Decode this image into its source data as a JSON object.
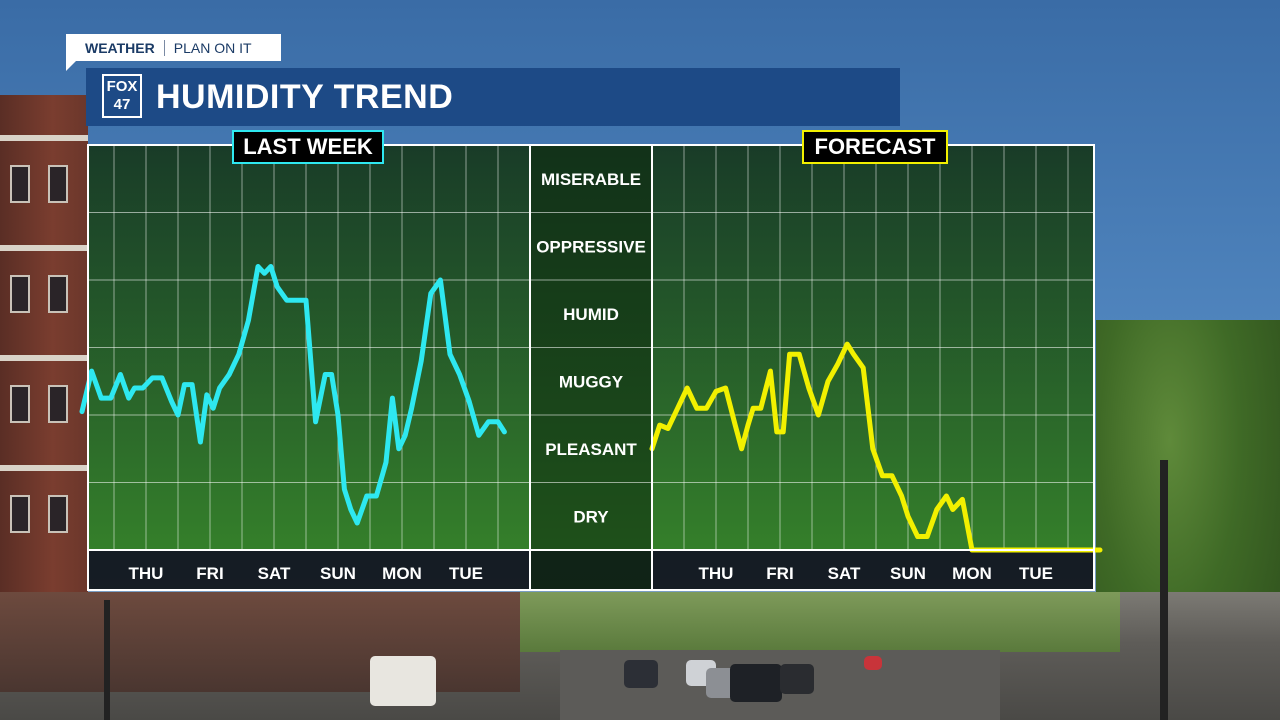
{
  "header": {
    "tag_primary": "WEATHER",
    "tag_secondary": "PLAN ON IT",
    "logo_line1": "FOX",
    "logo_line2": "47",
    "title": "HUMIDITY TREND"
  },
  "colors": {
    "last_week_line": "#2ee8f0",
    "forecast_line": "#f2f000",
    "chart_fill_top": "#123212",
    "chart_fill_bottom": "#2f7d1c",
    "title_bar": "#1d4a86"
  },
  "chart_data": [
    {
      "type": "line",
      "panel": "left",
      "title": "LAST WEEK",
      "categories": [
        "THU",
        "FRI",
        "SAT",
        "SUN",
        "MON",
        "TUE"
      ],
      "y_categories": [
        "DRY",
        "PLEASANT",
        "MUGGY",
        "HUMID",
        "OPPRESSIVE",
        "MISERABLE"
      ],
      "ylim": [
        0.5,
        6.5
      ],
      "xlim": [
        -1,
        6
      ],
      "grid": true,
      "series": [
        {
          "x": [
            -1,
            -0.85,
            -0.7,
            -0.55,
            -0.4,
            -0.27,
            -0.18,
            -0.05,
            0.1,
            0.25,
            0.4,
            0.5,
            0.6,
            0.72,
            0.85,
            0.95,
            1.05,
            1.15,
            1.3,
            1.45,
            1.6,
            1.75,
            1.85,
            1.95,
            2.05,
            2.2,
            2.35,
            2.5,
            2.65,
            2.8,
            2.9,
            3.0,
            3.1,
            3.2,
            3.3,
            3.45,
            3.6,
            3.75,
            3.85,
            3.95,
            4.05,
            4.15,
            4.3,
            4.45,
            4.6,
            4.75,
            4.9,
            5.05,
            5.2,
            5.35,
            5.5,
            5.6
          ],
          "y": [
            2.55,
            3.15,
            2.75,
            2.75,
            3.1,
            2.75,
            2.9,
            2.9,
            3.05,
            3.05,
            2.7,
            2.5,
            2.95,
            2.95,
            2.1,
            2.8,
            2.6,
            2.9,
            3.1,
            3.4,
            3.9,
            4.7,
            4.6,
            4.7,
            4.4,
            4.2,
            4.2,
            4.2,
            2.4,
            3.1,
            3.1,
            2.5,
            1.4,
            1.1,
            0.9,
            1.3,
            1.3,
            1.8,
            2.75,
            2.0,
            2.2,
            2.6,
            3.3,
            4.3,
            4.5,
            3.4,
            3.1,
            2.7,
            2.2,
            2.4,
            2.4,
            2.25
          ]
        }
      ]
    },
    {
      "type": "line",
      "panel": "right",
      "title": "FORECAST",
      "categories": [
        "THU",
        "FRI",
        "SAT",
        "SUN",
        "MON",
        "TUE"
      ],
      "y_categories": [
        "DRY",
        "PLEASANT",
        "MUGGY",
        "HUMID",
        "OPPRESSIVE",
        "MISERABLE"
      ],
      "ylim": [
        0.5,
        6.5
      ],
      "xlim": [
        -1,
        6
      ],
      "grid": true,
      "series": [
        {
          "x": [
            -1,
            -0.88,
            -0.75,
            -0.6,
            -0.45,
            -0.3,
            -0.15,
            0.0,
            0.15,
            0.3,
            0.4,
            0.5,
            0.58,
            0.7,
            0.85,
            0.95,
            1.05,
            1.15,
            1.3,
            1.45,
            1.6,
            1.75,
            1.9,
            2.05,
            2.15,
            2.3,
            2.45,
            2.6,
            2.75,
            2.9,
            3.0,
            3.15,
            3.3,
            3.45,
            3.6,
            3.7,
            3.85,
            4.0,
            4.25,
            4.5,
            4.75,
            5.0,
            5.25,
            5.5,
            5.75,
            6.0
          ],
          "y": [
            2.0,
            2.35,
            2.3,
            2.6,
            2.9,
            2.6,
            2.6,
            2.85,
            2.9,
            2.35,
            2.0,
            2.35,
            2.6,
            2.6,
            3.15,
            2.25,
            2.25,
            3.4,
            3.4,
            2.9,
            2.5,
            3.0,
            3.25,
            3.55,
            3.4,
            3.2,
            2.0,
            1.6,
            1.6,
            1.3,
            1.0,
            0.7,
            0.7,
            1.1,
            1.3,
            1.1,
            1.25,
            0.5,
            0.5,
            0.5,
            0.5,
            0.5,
            0.5,
            0.5,
            0.5,
            0.5
          ]
        }
      ]
    }
  ]
}
